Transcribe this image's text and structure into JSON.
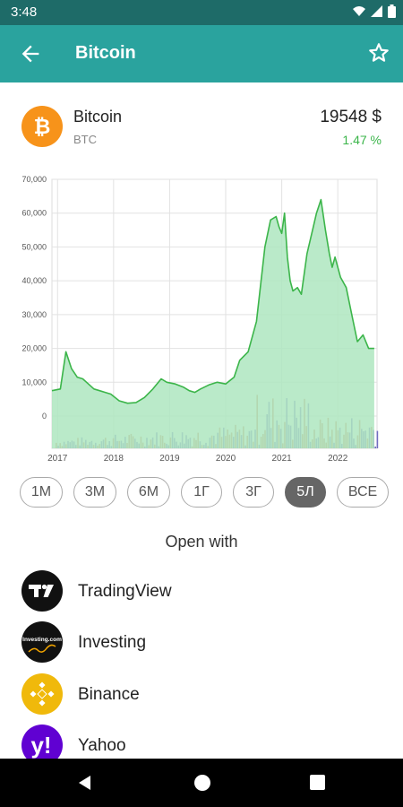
{
  "status": {
    "time": "3:48"
  },
  "appbar": {
    "title": "Bitcoin",
    "back_icon": "arrow-back-icon",
    "star_icon": "star-outline-icon"
  },
  "coin": {
    "name": "Bitcoin",
    "symbol": "BTC",
    "price": "19548 $",
    "change": "1.47 %",
    "logo_icon": "bitcoin-icon",
    "logo_color": "#f7931a"
  },
  "chart_data": {
    "type": "area",
    "title": "",
    "x_tick_labels": [
      "2017",
      "2018",
      "2019",
      "2020",
      "2021",
      "2022"
    ],
    "y_tick_labels": [
      "70,000",
      "60,000",
      "50,000",
      "40,000",
      "30,000",
      "20,000",
      "10,000",
      "0"
    ],
    "ylim": [
      0,
      70000
    ],
    "grid": true,
    "series": [
      {
        "color": "#3cb54a",
        "fill": "#aee6bf",
        "x": [
          2016.9,
          2017.05,
          2017.15,
          2017.25,
          2017.35,
          2017.45,
          2017.55,
          2017.65,
          2017.75,
          2017.85,
          2017.95,
          2018.1,
          2018.25,
          2018.4,
          2018.55,
          2018.7,
          2018.85,
          2018.95,
          2019.1,
          2019.25,
          2019.35,
          2019.45,
          2019.55,
          2019.7,
          2019.85,
          2020.0,
          2020.15,
          2020.25,
          2020.4,
          2020.55,
          2020.7,
          2020.8,
          2020.9,
          2020.95,
          2021.0,
          2021.05,
          2021.1,
          2021.15,
          2021.2,
          2021.28,
          2021.35,
          2021.45,
          2021.55,
          2021.62,
          2021.7,
          2021.78,
          2021.85,
          2021.9,
          2021.95,
          2022.05,
          2022.15,
          2022.25,
          2022.35,
          2022.45,
          2022.55,
          2022.65
        ],
        "values": [
          7500,
          8000,
          19000,
          14000,
          11500,
          11000,
          9500,
          8000,
          7500,
          7000,
          6500,
          4500,
          3800,
          4000,
          5500,
          8000,
          11000,
          10000,
          9500,
          8500,
          7500,
          7000,
          8000,
          9200,
          10000,
          9500,
          11500,
          16500,
          19000,
          28000,
          50000,
          58000,
          59000,
          56000,
          54000,
          60000,
          47000,
          40000,
          37000,
          38000,
          36000,
          48000,
          55000,
          60000,
          64000,
          55000,
          48000,
          44000,
          47000,
          41000,
          38000,
          30000,
          22000,
          24000,
          20000,
          20000
        ]
      }
    ]
  },
  "ranges": [
    "1М",
    "3М",
    "6М",
    "1Г",
    "3Г",
    "5Л",
    "ВСЕ"
  ],
  "active_range": "5Л",
  "open_with_label": "Open with",
  "apps": [
    {
      "label": "TradingView",
      "icon": "tradingview-icon"
    },
    {
      "label": "Investing",
      "icon": "investing-icon",
      "logo_text": "Investing.com"
    },
    {
      "label": "Binance",
      "icon": "binance-icon"
    },
    {
      "label": "Yahoo",
      "icon": "yahoo-icon",
      "logo_text": "y!"
    }
  ]
}
